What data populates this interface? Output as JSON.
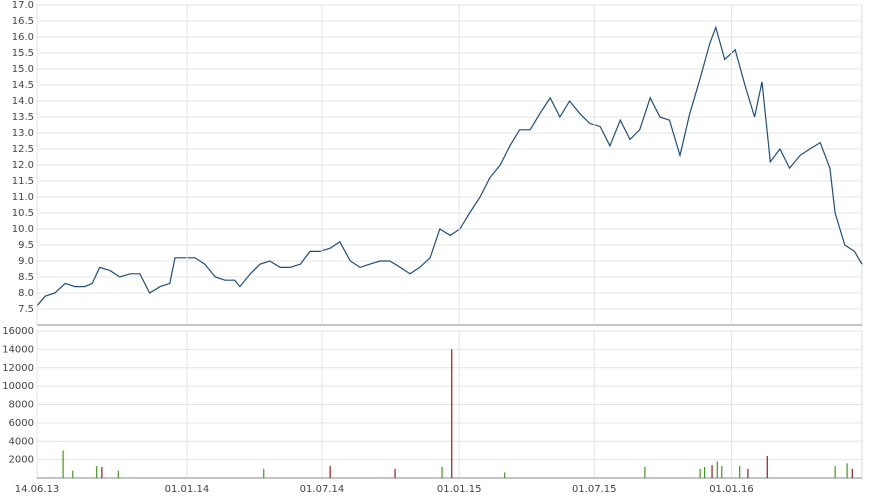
{
  "chart_data": [
    {
      "type": "line",
      "xlim": [
        "2013-06-14",
        "2016-06-24"
      ],
      "ylim": [
        7.0,
        17.0
      ],
      "yticks": [
        {
          "value": 7.5,
          "label": "7.5"
        },
        {
          "value": 8,
          "label": "8.0"
        },
        {
          "value": 8.5,
          "label": "8.5"
        },
        {
          "value": 9,
          "label": "9.0"
        },
        {
          "value": 9.5,
          "label": "9.5"
        },
        {
          "value": 10,
          "label": "10.0"
        },
        {
          "value": 10.5,
          "label": "10.5"
        },
        {
          "value": 11,
          "label": "11.0"
        },
        {
          "value": 11.5,
          "label": "11.5"
        },
        {
          "value": 12,
          "label": "12.0"
        },
        {
          "value": 12.5,
          "label": "12.5"
        },
        {
          "value": 13,
          "label": "13.0"
        },
        {
          "value": 13.5,
          "label": "13.5"
        },
        {
          "value": 14,
          "label": "14.0"
        },
        {
          "value": 14.5,
          "label": "14.5"
        },
        {
          "value": 15,
          "label": "15.0"
        },
        {
          "value": 15.5,
          "label": "15.5"
        },
        {
          "value": 16,
          "label": "16.0"
        },
        {
          "value": 16.5,
          "label": "16.5"
        },
        {
          "value": 17,
          "label": "17.0"
        }
      ],
      "grid": true,
      "x": [
        "2013-06-14",
        "2013-06-25",
        "2013-07-08",
        "2013-07-22",
        "2013-08-04",
        "2013-08-17",
        "2013-08-27",
        "2013-09-06",
        "2013-09-20",
        "2013-10-03",
        "2013-10-17",
        "2013-10-30",
        "2013-11-12",
        "2013-11-26",
        "2013-12-09",
        "2013-12-16",
        "2013-12-29",
        "2014-01-12",
        "2014-01-25",
        "2014-02-08",
        "2014-02-21",
        "2014-03-06",
        "2014-03-13",
        "2014-03-27",
        "2014-04-09",
        "2014-04-22",
        "2014-05-06",
        "2014-05-19",
        "2014-06-02",
        "2014-06-15",
        "2014-06-28",
        "2014-07-12",
        "2014-07-25",
        "2014-08-08",
        "2014-08-21",
        "2014-09-03",
        "2014-09-17",
        "2014-09-30",
        "2014-10-14",
        "2014-10-27",
        "2014-11-09",
        "2014-11-23",
        "2014-12-06",
        "2014-12-20",
        "2015-01-02",
        "2015-01-15",
        "2015-01-29",
        "2015-02-11",
        "2015-02-25",
        "2015-03-10",
        "2015-03-23",
        "2015-04-06",
        "2015-04-19",
        "2015-05-03",
        "2015-05-16",
        "2015-05-29",
        "2015-06-12",
        "2015-06-25",
        "2015-07-09",
        "2015-07-22",
        "2015-08-05",
        "2015-08-18",
        "2015-08-31",
        "2015-09-14",
        "2015-09-27",
        "2015-10-10",
        "2015-10-24",
        "2015-11-06",
        "2015-11-20",
        "2015-12-03",
        "2015-12-11",
        "2015-12-23",
        "2016-01-06",
        "2016-01-19",
        "2016-02-01",
        "2016-02-11",
        "2016-02-22",
        "2016-03-06",
        "2016-03-19",
        "2016-04-02",
        "2016-04-15",
        "2016-04-29",
        "2016-05-12",
        "2016-05-19",
        "2016-06-01",
        "2016-06-14",
        "2016-06-24"
      ],
      "series": [
        {
          "color": "#1f4e79",
          "values": [
            7.6,
            7.9,
            8.0,
            8.3,
            8.2,
            8.2,
            8.3,
            8.8,
            8.7,
            8.5,
            8.6,
            8.6,
            8.0,
            8.2,
            8.3,
            9.1,
            9.1,
            9.1,
            8.9,
            8.5,
            8.4,
            8.4,
            8.2,
            8.6,
            8.9,
            9.0,
            8.8,
            8.8,
            8.9,
            9.3,
            9.3,
            9.4,
            9.6,
            9.0,
            8.8,
            8.9,
            9.0,
            9.0,
            8.8,
            8.6,
            8.8,
            9.1,
            10.0,
            9.8,
            10.0,
            10.5,
            11.0,
            11.6,
            12.0,
            12.6,
            13.1,
            13.1,
            13.6,
            14.1,
            13.5,
            14.0,
            13.6,
            13.3,
            13.2,
            12.6,
            13.4,
            12.8,
            13.1,
            14.1,
            13.5,
            13.4,
            12.3,
            13.6,
            14.7,
            15.8,
            16.3,
            15.3,
            15.6,
            14.5,
            13.5,
            14.6,
            12.1,
            12.5,
            11.9,
            12.3,
            12.5,
            12.7,
            11.9,
            10.5,
            9.5,
            9.3,
            8.9
          ]
        }
      ]
    },
    {
      "type": "bar",
      "xlim": [
        "2013-06-14",
        "2016-06-24"
      ],
      "xticks": [
        {
          "value": "2013-06-14",
          "label": "14.06.13"
        },
        {
          "value": "2014-01-01",
          "label": "01.01.14"
        },
        {
          "value": "2014-07-01",
          "label": "01.07.14"
        },
        {
          "value": "2015-01-01",
          "label": "01.01.15"
        },
        {
          "value": "2015-07-01",
          "label": "01.07.15"
        },
        {
          "value": "2016-01-01",
          "label": "01.01.16"
        }
      ],
      "ylim": [
        0,
        16000
      ],
      "yticks": [
        2000,
        4000,
        6000,
        8000,
        10000,
        12000,
        14000,
        16000
      ],
      "grid": true,
      "series": [
        {
          "color": "#3a9a1a",
          "x": [
            "2013-07-19",
            "2013-08-01",
            "2013-09-02",
            "2013-10-01",
            "2014-04-14",
            "2014-12-09",
            "2015-03-03",
            "2015-09-07",
            "2015-11-20",
            "2015-11-26",
            "2015-12-13",
            "2015-12-19",
            "2016-01-12",
            "2016-05-19",
            "2016-06-04"
          ],
          "values": [
            3000,
            800,
            1300,
            800,
            1000,
            1200,
            600,
            1200,
            1000,
            1200,
            1800,
            1300,
            1300,
            1300,
            1600
          ]
        },
        {
          "color": "#a01818",
          "x": [
            "2013-09-09",
            "2014-07-12",
            "2014-10-07",
            "2014-12-22",
            "2015-12-06",
            "2016-01-23",
            "2016-02-18",
            "2016-06-11"
          ],
          "values": [
            1200,
            1300,
            1000,
            14000,
            1400,
            1000,
            2400,
            1000
          ]
        }
      ]
    }
  ]
}
